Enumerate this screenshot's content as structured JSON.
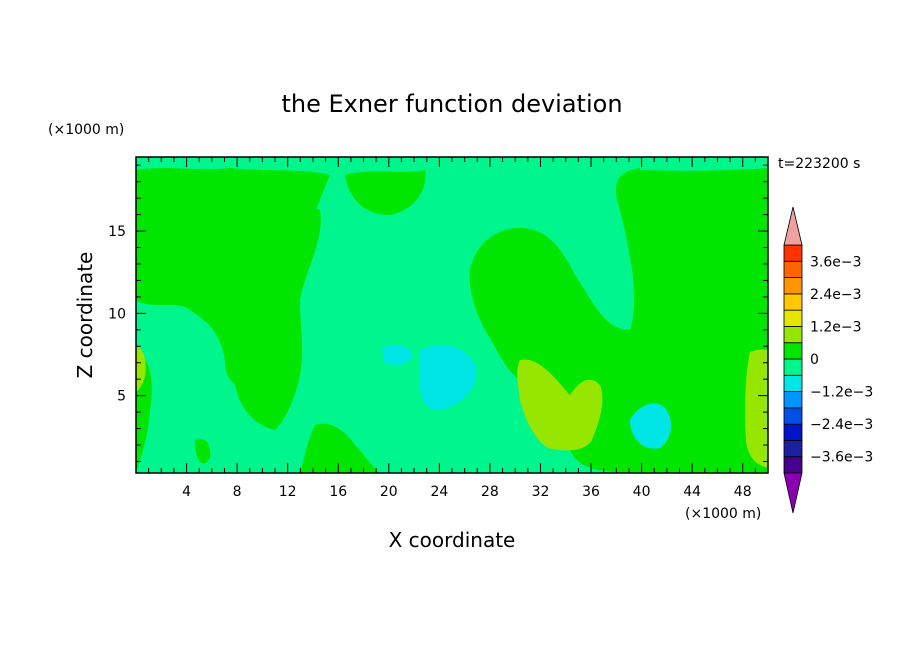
{
  "chart_data": {
    "type": "heatmap",
    "title": "the Exner function deviation",
    "xlabel": "X coordinate",
    "ylabel": "Z coordinate",
    "x_unit": "(×1000 m)",
    "y_unit": "(×1000 m)",
    "time_label": "t=223200 s",
    "xlim": [
      0,
      50
    ],
    "ylim": [
      0.3,
      19.5
    ],
    "x_ticks": [
      4,
      8,
      12,
      16,
      20,
      24,
      28,
      32,
      36,
      40,
      44,
      48
    ],
    "y_ticks": [
      5,
      10,
      15
    ],
    "colorbar": {
      "levels": [
        -0.0036,
        -0.003,
        -0.0024,
        -0.0018,
        -0.0012,
        -0.0006,
        0,
        0.0006,
        0.0012,
        0.0018,
        0.0024,
        0.003,
        0.0036
      ],
      "colors": [
        "#8c00b4",
        "#46008c",
        "#1e1ea0",
        "#0014c8",
        "#0050e6",
        "#0096ff",
        "#00e6e6",
        "#00f58c",
        "#00e600",
        "#96e600",
        "#e6e600",
        "#ffc800",
        "#ff9600",
        "#ff6400",
        "#ff3200",
        "#f0a0a0"
      ],
      "tick_labels": [
        {
          "text": "3.6e−3",
          "level": 0.0036
        },
        {
          "text": "2.4e−3",
          "level": 0.0024
        },
        {
          "text": "1.2e−3",
          "level": 0.0012
        },
        {
          "text": "0",
          "level": 0
        },
        {
          "text": "−1.2e−3",
          "level": -0.0012
        },
        {
          "text": "−2.4e−3",
          "level": -0.0024
        },
        {
          "text": "−3.6e−3",
          "level": -0.0036
        }
      ]
    },
    "field_regions": [
      {
        "level": "-0.0006_to_0",
        "color": "#00f58c",
        "description_value": -0.0003
      },
      {
        "level": "0_to_0.0006",
        "color": "#00e600",
        "description_value": 0.0003
      },
      {
        "level": "0.0006_to_0.0012",
        "color": "#96e600",
        "description_value": 0.0009
      },
      {
        "level": "-0.0012_to_-0.0006",
        "color": "#00e6e6",
        "description_value": -0.0009
      }
    ]
  }
}
